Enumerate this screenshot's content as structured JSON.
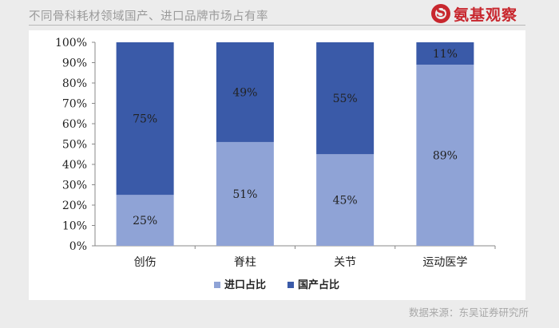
{
  "header": {
    "title": "不同骨科耗材领域国产、进口品牌市场占有率",
    "logo_text": "氨基观察"
  },
  "source": "数据来源：东吴证券研究所",
  "colors": {
    "import": "#8fa3d6",
    "domestic": "#3a5aa8",
    "brand_red": "#c8272e"
  },
  "chart_data": {
    "type": "bar",
    "stacked": true,
    "categories": [
      "创伤",
      "脊柱",
      "关节",
      "运动医学"
    ],
    "series": [
      {
        "name": "进口占比",
        "values": [
          25,
          51,
          45,
          89
        ],
        "labels": [
          "25%",
          "51%",
          "45%",
          "89%"
        ]
      },
      {
        "name": "国产占比",
        "values": [
          75,
          49,
          55,
          11
        ],
        "labels": [
          "75%",
          "49%",
          "55%",
          "11%"
        ]
      }
    ],
    "yticks": [
      "0%",
      "10%",
      "20%",
      "30%",
      "40%",
      "50%",
      "60%",
      "70%",
      "80%",
      "90%",
      "100%"
    ],
    "ylim": [
      0,
      100
    ],
    "legend_position": "bottom",
    "grid": false
  }
}
